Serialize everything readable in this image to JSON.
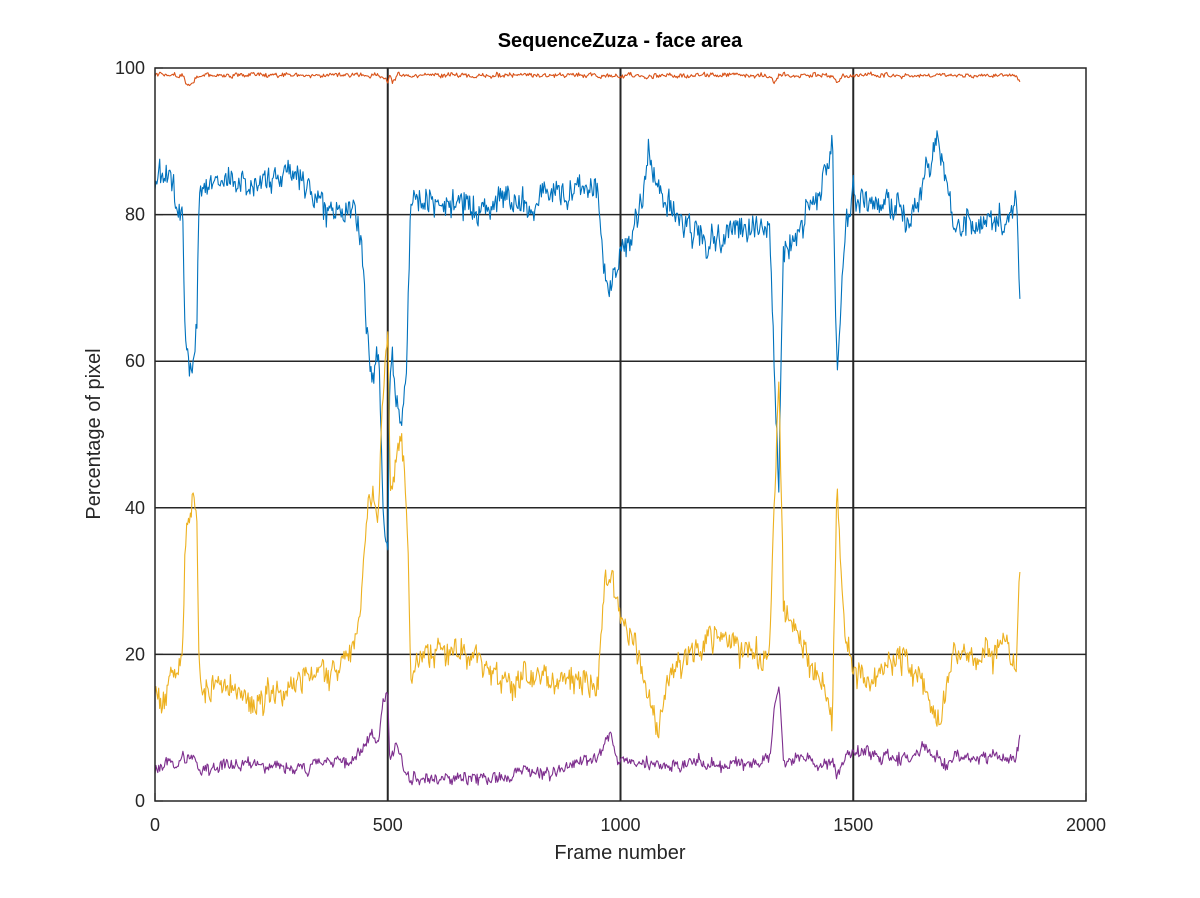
{
  "chart_data": {
    "type": "line",
    "title": "SequenceZuza - face area",
    "xlabel": "Frame number",
    "ylabel": "Percentage of pixel",
    "xlim": [
      0,
      2000
    ],
    "ylim": [
      0,
      100
    ],
    "xticks": [
      "0",
      "500",
      "1000",
      "1500",
      "2000"
    ],
    "yticks": [
      "0",
      "20",
      "40",
      "60",
      "80",
      "100"
    ],
    "grid": true,
    "legend": "none",
    "x": [
      0,
      20,
      40,
      60,
      65,
      70,
      80,
      90,
      95,
      100,
      150,
      200,
      250,
      300,
      350,
      400,
      430,
      445,
      460,
      470,
      480,
      490,
      500,
      505,
      510,
      520,
      530,
      540,
      550,
      600,
      650,
      700,
      750,
      800,
      850,
      900,
      950,
      965,
      980,
      1000,
      1020,
      1040,
      1060,
      1080,
      1100,
      1150,
      1200,
      1250,
      1300,
      1320,
      1330,
      1340,
      1350,
      1380,
      1400,
      1440,
      1455,
      1465,
      1480,
      1500,
      1550,
      1600,
      1620,
      1650,
      1680,
      1700,
      1720,
      1760,
      1800,
      1830,
      1850,
      1858
    ],
    "series": [
      {
        "color": "#0072BD",
        "values": [
          84,
          86,
          85,
          79,
          62,
          60,
          57,
          65,
          82,
          84,
          85,
          84,
          85,
          86,
          82,
          80,
          82,
          75,
          60,
          57,
          62,
          40,
          35,
          58,
          62,
          55,
          52,
          60,
          82,
          81,
          82,
          80,
          83,
          81,
          83,
          83,
          84,
          72,
          69,
          75,
          77,
          80,
          88,
          85,
          82,
          78,
          76,
          78,
          79,
          80,
          60,
          42,
          75,
          78,
          80,
          85,
          90,
          58,
          76,
          83,
          82,
          81,
          80,
          84,
          90,
          85,
          78,
          79,
          80,
          78,
          82,
          68
        ]
      },
      {
        "color": "#D95319",
        "values": [
          99,
          99,
          99,
          99,
          98,
          98,
          98,
          99,
          99,
          99,
          99,
          99,
          99,
          99,
          99,
          99,
          99,
          99,
          99,
          99,
          99,
          99,
          98,
          99,
          98,
          99,
          99,
          99,
          99,
          99,
          99,
          99,
          99,
          99,
          99,
          99,
          99,
          99,
          99,
          99,
          99,
          99,
          99,
          99,
          99,
          99,
          99,
          99,
          99,
          99,
          98,
          99,
          99,
          99,
          99,
          99,
          99,
          98,
          99,
          99,
          99,
          99,
          99,
          99,
          99,
          99,
          99,
          99,
          99,
          99,
          99,
          98
        ]
      },
      {
        "color": "#EDB120",
        "values": [
          15,
          13,
          17,
          20,
          35,
          38,
          41,
          36,
          16,
          14,
          16,
          14,
          15,
          15,
          18,
          19,
          21,
          30,
          42,
          41,
          40,
          55,
          63,
          43,
          42,
          46,
          49,
          42,
          18,
          20,
          21,
          19,
          16,
          17,
          16,
          17,
          15,
          28,
          31,
          25,
          22,
          20,
          14,
          10,
          16,
          20,
          22,
          21,
          20,
          21,
          40,
          58,
          26,
          22,
          20,
          14,
          10,
          44,
          24,
          17,
          18,
          19,
          20,
          16,
          10,
          15,
          21,
          20,
          20,
          21,
          17,
          31
        ]
      },
      {
        "color": "#7E2F8E",
        "values": [
          4,
          5,
          5,
          6,
          5,
          6,
          6,
          5,
          4,
          4,
          5,
          5,
          5,
          4,
          5,
          5,
          6,
          7,
          9,
          9,
          8,
          14,
          15,
          5,
          7,
          8,
          6,
          4,
          3,
          3,
          3,
          3,
          3,
          4,
          4,
          5,
          6,
          8,
          9,
          5,
          5,
          5,
          5,
          5,
          5,
          5,
          5,
          5,
          5,
          6,
          12,
          16,
          5,
          6,
          6,
          5,
          5,
          3,
          6,
          7,
          6,
          6,
          6,
          7,
          6,
          5,
          6,
          6,
          6,
          6,
          6,
          9
        ]
      }
    ]
  }
}
